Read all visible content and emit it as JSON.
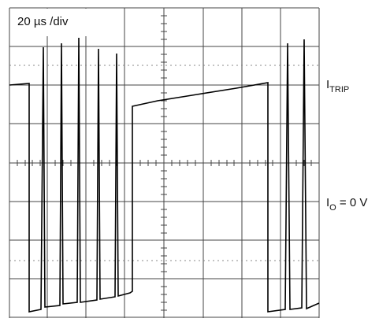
{
  "timebase": "20 µs /div",
  "labels": [
    {
      "main": "I",
      "sub": "TRIP"
    },
    {
      "main": "I",
      "sub": "O",
      "suffix": " = 0 V"
    }
  ]
}
